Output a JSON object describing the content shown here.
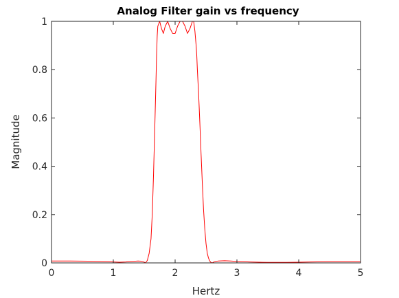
{
  "chart_data": {
    "type": "line",
    "title": "Analog Filter gain vs frequency",
    "xlabel": "Hertz",
    "ylabel": "Magnitude",
    "xlim": [
      0,
      5
    ],
    "ylim": [
      0,
      1
    ],
    "xticks": [
      0,
      1,
      2,
      3,
      4,
      5
    ],
    "xtick_labels": [
      "0",
      "1",
      "2",
      "3",
      "4",
      "5"
    ],
    "yticks": [
      0,
      0.2,
      0.4,
      0.6,
      0.8,
      1
    ],
    "ytick_labels": [
      "0",
      "0.2",
      "0.4",
      "0.6",
      "0.8",
      "1"
    ],
    "grid": false,
    "series": [
      {
        "color": "#ff0000",
        "x": [
          0,
          0.3,
          0.6,
          0.75,
          0.9,
          1.0,
          1.1,
          1.2,
          1.3,
          1.4,
          1.45,
          1.5,
          1.52,
          1.55,
          1.58,
          1.61,
          1.63,
          1.65,
          1.67,
          1.69,
          1.7,
          1.71,
          1.72,
          1.75,
          1.78,
          1.81,
          1.84,
          1.88,
          1.92,
          1.96,
          2.0,
          2.04,
          2.08,
          2.12,
          2.16,
          2.2,
          2.24,
          2.28,
          2.3,
          2.32,
          2.34,
          2.35,
          2.36,
          2.38,
          2.4,
          2.42,
          2.44,
          2.46,
          2.48,
          2.5,
          2.52,
          2.54,
          2.56,
          2.58,
          2.6,
          2.62,
          2.66,
          2.7,
          2.8,
          2.9,
          3.0,
          3.2,
          3.5,
          3.8,
          4.0,
          4.2,
          4.5,
          5.0
        ],
        "y": [
          0.008,
          0.008,
          0.007,
          0.006,
          0.005,
          0.004,
          0.003,
          0.004,
          0.006,
          0.008,
          0.007,
          0.003,
          0.0,
          0.01,
          0.04,
          0.1,
          0.2,
          0.36,
          0.55,
          0.75,
          0.86,
          0.94,
          0.98,
          1.0,
          0.97,
          0.95,
          0.98,
          1.0,
          0.97,
          0.95,
          0.95,
          0.98,
          1.0,
          1.0,
          0.98,
          0.95,
          0.97,
          1.0,
          1.0,
          0.96,
          0.9,
          0.86,
          0.8,
          0.7,
          0.58,
          0.45,
          0.33,
          0.22,
          0.14,
          0.08,
          0.04,
          0.02,
          0.008,
          0.002,
          0.0,
          0.003,
          0.006,
          0.008,
          0.009,
          0.008,
          0.006,
          0.004,
          0.002,
          0.002,
          0.003,
          0.004,
          0.005,
          0.005
        ]
      }
    ]
  }
}
